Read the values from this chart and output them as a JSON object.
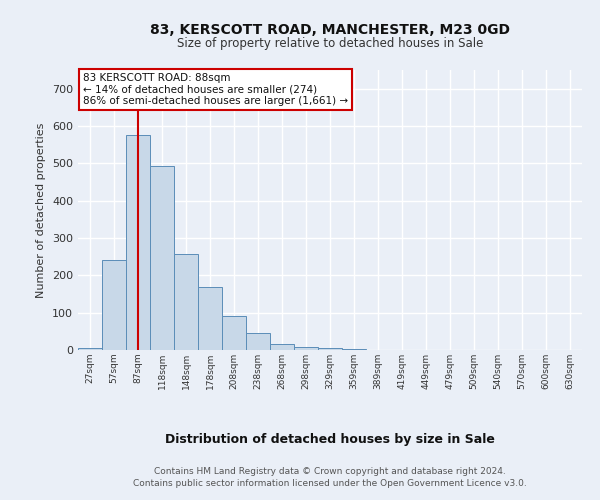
{
  "title1": "83, KERSCOTT ROAD, MANCHESTER, M23 0GD",
  "title2": "Size of property relative to detached houses in Sale",
  "xlabel": "Distribution of detached houses by size in Sale",
  "ylabel": "Number of detached properties",
  "bin_labels": [
    "27sqm",
    "57sqm",
    "87sqm",
    "118sqm",
    "148sqm",
    "178sqm",
    "208sqm",
    "238sqm",
    "268sqm",
    "298sqm",
    "329sqm",
    "359sqm",
    "389sqm",
    "419sqm",
    "449sqm",
    "479sqm",
    "509sqm",
    "540sqm",
    "570sqm",
    "600sqm",
    "630sqm"
  ],
  "bar_values": [
    5,
    242,
    575,
    493,
    258,
    168,
    91,
    46,
    15,
    7,
    5,
    2,
    1,
    0,
    1,
    0,
    0,
    0,
    0,
    0,
    0
  ],
  "bar_color": "#c8d8e8",
  "bar_edge_color": "#5b8db8",
  "property_line_x": 2,
  "annotation_text": "83 KERSCOTT ROAD: 88sqm\n← 14% of detached houses are smaller (274)\n86% of semi-detached houses are larger (1,661) →",
  "annotation_box_color": "#ffffff",
  "annotation_border_color": "#cc0000",
  "footer1": "Contains HM Land Registry data © Crown copyright and database right 2024.",
  "footer2": "Contains public sector information licensed under the Open Government Licence v3.0.",
  "ylim": [
    0,
    750
  ],
  "yticks": [
    0,
    100,
    200,
    300,
    400,
    500,
    600,
    700
  ],
  "bg_color": "#eaeff7",
  "plot_bg_color": "#eaeff7",
  "grid_color": "#ffffff",
  "line_color": "#cc0000"
}
